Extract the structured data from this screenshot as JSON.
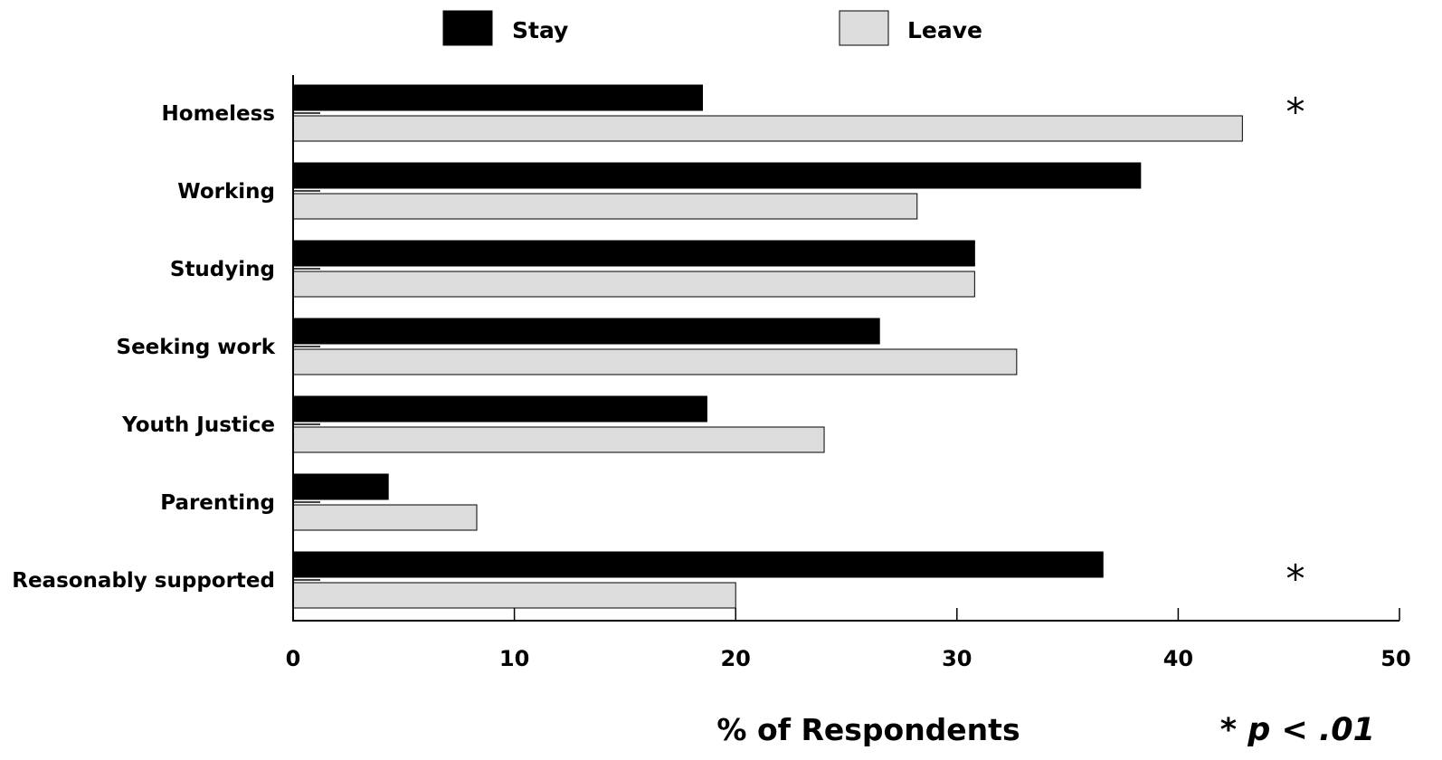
{
  "chart_data": {
    "type": "bar",
    "orientation": "horizontal",
    "categories": [
      "Homeless",
      "Working",
      "Studying",
      "Seeking work",
      "Youth Justice",
      "Parenting",
      "Reasonably supported"
    ],
    "series": [
      {
        "name": "Stay",
        "color": "#000000",
        "values": [
          18.5,
          38.3,
          30.8,
          26.5,
          18.7,
          4.3,
          36.6
        ]
      },
      {
        "name": "Leave",
        "color": "#dcdcdc",
        "values": [
          42.9,
          28.2,
          30.8,
          32.7,
          24.0,
          8.3,
          20.0
        ]
      }
    ],
    "significant": [
      true,
      false,
      false,
      false,
      false,
      false,
      true
    ],
    "significance_marker": "*",
    "xlabel": "% of Respondents",
    "xlim": [
      0,
      50
    ],
    "xticks": [
      "0",
      "10",
      "20",
      "30",
      "40",
      "50"
    ],
    "legend_position": "top-center",
    "note": "* p < .01",
    "grid": false
  }
}
